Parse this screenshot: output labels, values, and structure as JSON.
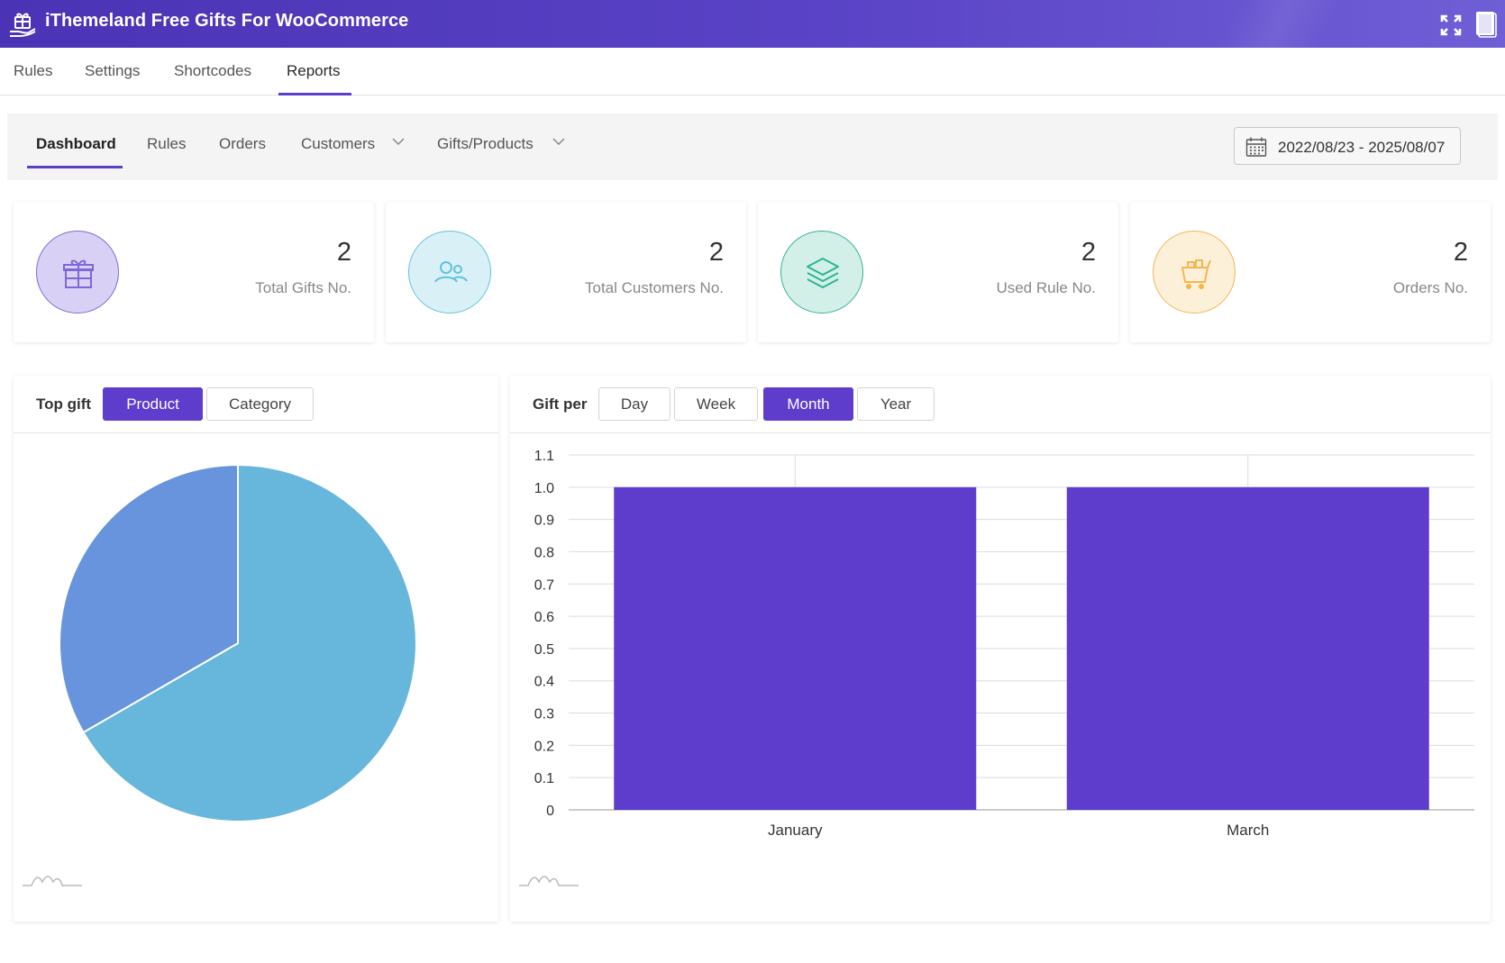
{
  "app": {
    "title": "iThemeland Free Gifts For WooCommerce",
    "icons": [
      "gift-hand-logo-icon",
      "fullscreen-icon",
      "documentation-icon"
    ]
  },
  "main_tabs": [
    {
      "label": "Rules"
    },
    {
      "label": "Settings"
    },
    {
      "label": "Shortcodes"
    },
    {
      "label": "Reports",
      "active": true
    }
  ],
  "sub_tabs": [
    {
      "label": "Dashboard",
      "active": true
    },
    {
      "label": "Rules"
    },
    {
      "label": "Orders"
    },
    {
      "label": "Customers",
      "dropdown": true
    },
    {
      "label": "Gifts/Products",
      "dropdown": true
    }
  ],
  "date_range": "2022/08/23 - 2025/08/07",
  "stats": [
    {
      "value": "2",
      "label": "Total Gifts No.",
      "icon": "gift-icon",
      "color": "#d9d1f5",
      "stroke": "#7f67d8"
    },
    {
      "value": "2",
      "label": "Total Customers No.",
      "icon": "users-icon",
      "color": "#d9f1f6",
      "stroke": "#5ec3dc"
    },
    {
      "value": "2",
      "label": "Used Rule No.",
      "icon": "layers-icon",
      "color": "#d2f0e8",
      "stroke": "#2fb393"
    },
    {
      "value": "2",
      "label": "Orders No.",
      "icon": "cart-icon",
      "color": "#fdf0d8",
      "stroke": "#f5b54f"
    }
  ],
  "top_gift": {
    "label": "Top gift",
    "options": [
      {
        "label": "Product",
        "active": true
      },
      {
        "label": "Category"
      }
    ]
  },
  "gift_per": {
    "label": "Gift per",
    "options": [
      {
        "label": "Day"
      },
      {
        "label": "Week"
      },
      {
        "label": "Month",
        "active": true
      },
      {
        "label": "Year"
      }
    ]
  },
  "chart_data": [
    {
      "type": "pie",
      "values": [
        2,
        1
      ],
      "colors": [
        "#67b7dc",
        "#6794dc"
      ]
    },
    {
      "type": "bar",
      "categories": [
        "January",
        "March"
      ],
      "values": [
        1,
        1
      ],
      "ylim": [
        0,
        1.1
      ],
      "yticks": [
        "0",
        "0.1",
        "0.2",
        "0.3",
        "0.4",
        "0.5",
        "0.6",
        "0.7",
        "0.8",
        "0.9",
        "1.0",
        "1.1"
      ],
      "grid": true,
      "color": "#5f3dcc"
    }
  ]
}
